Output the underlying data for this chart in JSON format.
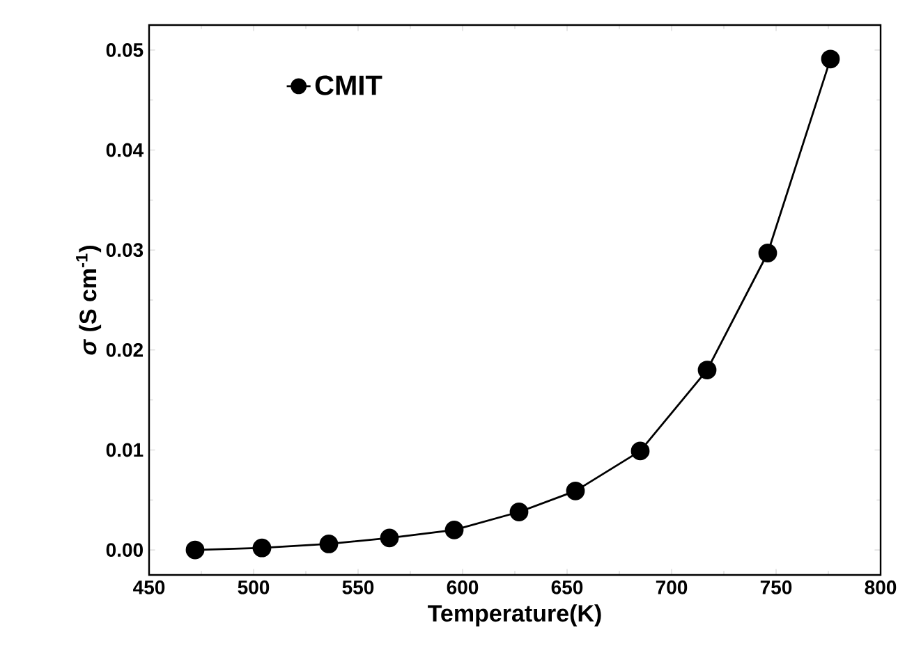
{
  "chart_data": {
    "type": "line",
    "xlabel": "Temperature(K)",
    "ylabel": "*σ* (S cm$^{-1}$)",
    "xlim": [
      450,
      800
    ],
    "xticks": [
      450,
      500,
      550,
      600,
      650,
      700,
      750,
      800
    ],
    "ylim": [
      -0.0025,
      0.0525
    ],
    "yticks": [
      {
        "value": 0,
        "label": "0.00"
      },
      {
        "value": 0.01,
        "label": "0.01"
      },
      {
        "value": 0.02,
        "label": "0.02"
      },
      {
        "value": 0.03,
        "label": "0.03"
      },
      {
        "value": 0.04,
        "label": "0.04"
      },
      {
        "value": 0.05,
        "label": "0.05"
      }
    ],
    "marker": "circle",
    "line_style": "solid",
    "legend": "top left",
    "series": [
      {
        "name": "CMIT",
        "color": "#000000",
        "x": [
          472,
          504,
          536,
          565,
          596,
          627,
          654,
          685,
          717,
          746,
          776
        ],
        "values": [
          0.0,
          0.0002,
          0.0006,
          0.0012,
          0.002,
          0.0038,
          0.0059,
          0.0099,
          0.018,
          0.0297,
          0.0491
        ]
      }
    ]
  }
}
